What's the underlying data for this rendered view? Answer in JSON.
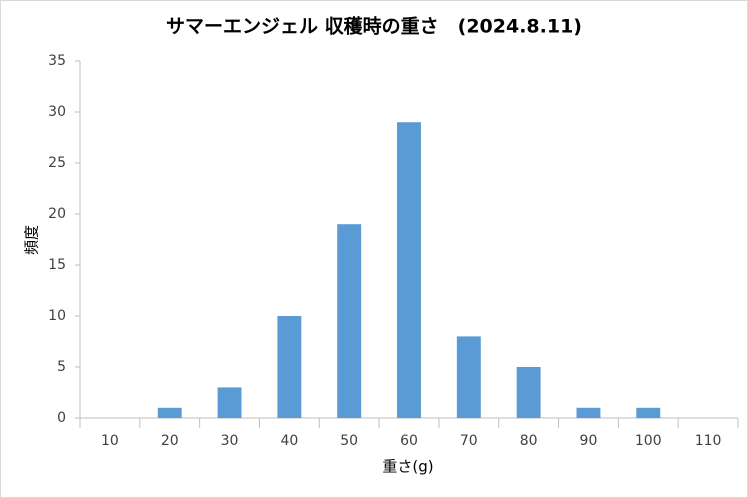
{
  "chart_data": {
    "type": "bar",
    "title": "サマーエンジェル 収穫時の重さ　(2024.8.11)",
    "x_label": "重さ(g)",
    "y_label": "頻度",
    "categories": [
      "10",
      "20",
      "30",
      "40",
      "50",
      "60",
      "70",
      "80",
      "90",
      "100",
      "110"
    ],
    "values": [
      0,
      1,
      3,
      10,
      19,
      29,
      8,
      5,
      1,
      1,
      0
    ],
    "color": "#5b9bd5",
    "ylim": [
      0,
      35
    ],
    "yticks": [
      0,
      5,
      10,
      15,
      20,
      25,
      30,
      35
    ],
    "grid": false
  }
}
